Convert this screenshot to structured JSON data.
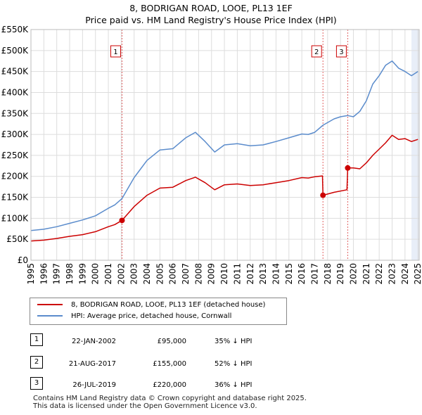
{
  "title_line1": "8, BODRIGAN ROAD, LOOE, PL13 1EF",
  "title_line2": "Price paid vs. HM Land Registry's House Price Index (HPI)",
  "colors": {
    "property": "#cc0000",
    "hpi": "#5b8ccc",
    "vline": "#e06060",
    "shade": "#e8eef8"
  },
  "chart_data": {
    "type": "line",
    "title": "8, BODRIGAN ROAD, LOOE, PL13 1EF — Price paid vs. HM Land Registry's House Price Index (HPI)",
    "xlabel": "",
    "ylabel": "",
    "xlim": [
      1995,
      2025.1
    ],
    "ylim": [
      0,
      550000
    ],
    "y_ticks": [
      0,
      50000,
      100000,
      150000,
      200000,
      250000,
      300000,
      350000,
      400000,
      450000,
      500000,
      550000
    ],
    "y_tick_labels": [
      "£0",
      "£50K",
      "£100K",
      "£150K",
      "£200K",
      "£250K",
      "£300K",
      "£350K",
      "£400K",
      "£450K",
      "£500K",
      "£550K"
    ],
    "x_ticks": [
      1995,
      1996,
      1997,
      1998,
      1999,
      2000,
      2001,
      2002,
      2003,
      2004,
      2005,
      2006,
      2007,
      2008,
      2009,
      2010,
      2011,
      2012,
      2013,
      2014,
      2015,
      2016,
      2017,
      2018,
      2019,
      2020,
      2021,
      2022,
      2023,
      2024,
      2025
    ],
    "x_tick_labels": [
      "1995",
      "1996",
      "1997",
      "1998",
      "1999",
      "2000",
      "2001",
      "2002",
      "2003",
      "2004",
      "2005",
      "2006",
      "2007",
      "2008",
      "2009",
      "2010",
      "2011",
      "2012",
      "2013",
      "2014",
      "2015",
      "2016",
      "2017",
      "2018",
      "2019",
      "2020",
      "2021",
      "2022",
      "2023",
      "2024",
      "2025"
    ],
    "grid": true,
    "shaded_region": [
      2024.5,
      2025.1
    ],
    "series": [
      {
        "name": "8, BODRIGAN ROAD, LOOE, PL13 1EF (detached house)",
        "color": "#cc0000",
        "x": [
          1995.0,
          1996.0,
          1997.0,
          1998.0,
          1999.0,
          2000.0,
          2001.0,
          2001.5,
          2002.06,
          2003.0,
          2004.0,
          2005.0,
          2006.0,
          2007.0,
          2007.75,
          2008.5,
          2009.25,
          2010.0,
          2011.0,
          2012.0,
          2013.0,
          2014.0,
          2015.0,
          2016.0,
          2016.5,
          2017.0,
          2017.6,
          2017.64,
          2018.5,
          2019.5,
          2019.56,
          2020.0,
          2020.5,
          2021.0,
          2021.5,
          2022.0,
          2022.5,
          2023.0,
          2023.5,
          2024.0,
          2024.5,
          2025.0
        ],
        "y": [
          46000,
          48000,
          52000,
          57000,
          61000,
          68000,
          80000,
          85000,
          95000,
          128000,
          155000,
          172000,
          174000,
          190000,
          198000,
          185000,
          168000,
          180000,
          182000,
          178000,
          180000,
          185000,
          190000,
          197000,
          196000,
          199000,
          201000,
          155000,
          162000,
          168000,
          220000,
          220000,
          218000,
          232000,
          250000,
          265000,
          280000,
          298000,
          288000,
          290000,
          283000,
          288000
        ]
      },
      {
        "name": "HPI: Average price, detached house, Cornwall",
        "color": "#5b8ccc",
        "x": [
          1995.0,
          1996.0,
          1997.0,
          1998.0,
          1999.0,
          2000.0,
          2001.0,
          2001.5,
          2002.06,
          2003.0,
          2004.0,
          2005.0,
          2006.0,
          2007.0,
          2007.75,
          2008.5,
          2009.25,
          2010.0,
          2011.0,
          2012.0,
          2013.0,
          2014.0,
          2015.0,
          2016.0,
          2016.5,
          2017.0,
          2017.64,
          2018.5,
          2019.0,
          2019.56,
          2020.0,
          2020.5,
          2021.0,
          2021.5,
          2022.0,
          2022.5,
          2023.0,
          2023.5,
          2024.0,
          2024.5,
          2025.0
        ],
        "y": [
          71000,
          74000,
          80000,
          88000,
          96000,
          106000,
          124000,
          132000,
          147000,
          197000,
          238000,
          263000,
          266000,
          292000,
          305000,
          283000,
          258000,
          275000,
          278000,
          273000,
          275000,
          283000,
          292000,
          301000,
          300000,
          305000,
          322000,
          337000,
          342000,
          345000,
          342000,
          355000,
          380000,
          420000,
          440000,
          465000,
          475000,
          458000,
          450000,
          440000,
          450000
        ]
      }
    ],
    "sale_markers": [
      {
        "label": "1",
        "x": 2002.06,
        "y": 95000
      },
      {
        "label": "2",
        "x": 2017.64,
        "y": 155000
      },
      {
        "label": "3",
        "x": 2019.56,
        "y": 220000
      }
    ]
  },
  "legend": {
    "property_label": "8, BODRIGAN ROAD, LOOE, PL13 1EF (detached house)",
    "hpi_label": "HPI: Average price, detached house, Cornwall"
  },
  "sales": [
    {
      "num": "1",
      "date": "22-JAN-2002",
      "price": "£95,000",
      "pct": "35% ↓ HPI"
    },
    {
      "num": "2",
      "date": "21-AUG-2017",
      "price": "£155,000",
      "pct": "52% ↓ HPI"
    },
    {
      "num": "3",
      "date": "26-JUL-2019",
      "price": "£220,000",
      "pct": "36% ↓ HPI"
    }
  ],
  "footer": {
    "line1": "Contains HM Land Registry data © Crown copyright and database right 2025.",
    "line2": "This data is licensed under the Open Government Licence v3.0."
  }
}
